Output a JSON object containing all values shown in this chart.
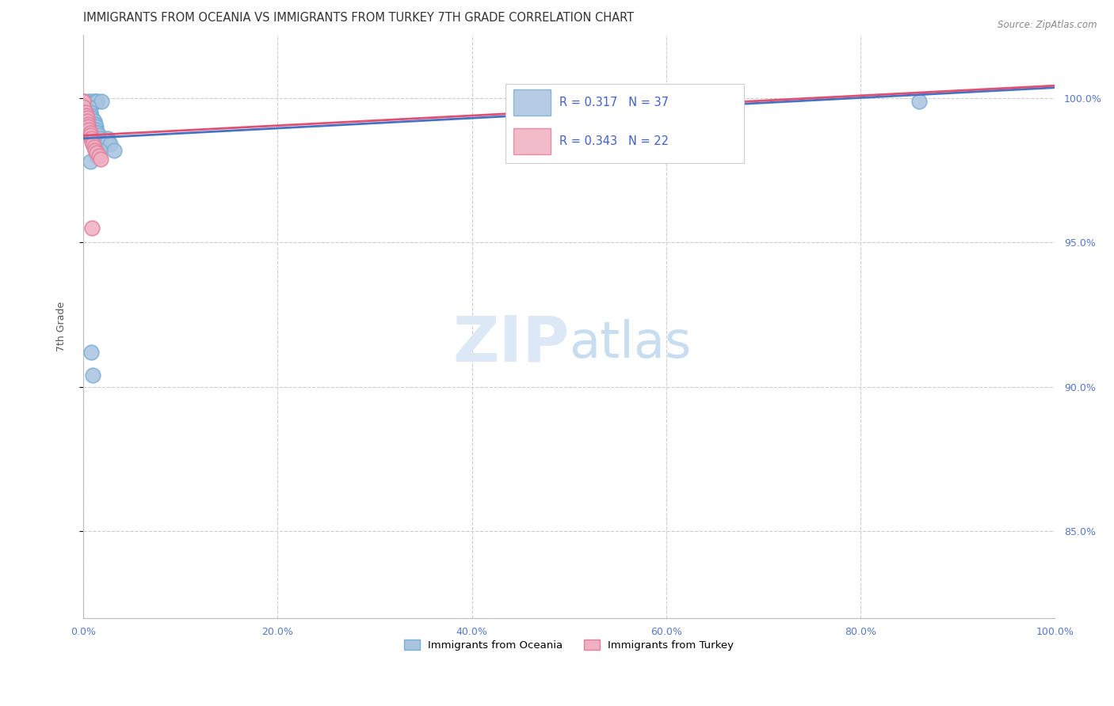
{
  "title": "IMMIGRANTS FROM OCEANIA VS IMMIGRANTS FROM TURKEY 7TH GRADE CORRELATION CHART",
  "source": "Source: ZipAtlas.com",
  "ylabel": "7th Grade",
  "xlim": [
    0.0,
    1.0
  ],
  "ylim": [
    0.82,
    1.022
  ],
  "legend_labels": [
    "Immigrants from Oceania",
    "Immigrants from Turkey"
  ],
  "oceania_color": "#aac4e0",
  "turkey_color": "#f0b0c0",
  "oceania_edge_color": "#7aafd4",
  "turkey_edge_color": "#e080a0",
  "oceania_line_color": "#4472c4",
  "turkey_line_color": "#e05070",
  "R_oceania": 0.317,
  "N_oceania": 37,
  "R_turkey": 0.343,
  "N_turkey": 22,
  "watermark_zip": "ZIP",
  "watermark_atlas": "atlas",
  "watermark_color": "#dce8f5",
  "oceania_points": [
    [
      0.0,
      0.999
    ],
    [
      0.0,
      0.999
    ],
    [
      0.005,
      0.999
    ],
    [
      0.008,
      0.999
    ],
    [
      0.011,
      0.999
    ],
    [
      0.012,
      0.999
    ],
    [
      0.014,
      0.999
    ],
    [
      0.014,
      0.999
    ],
    [
      0.019,
      0.999
    ],
    [
      0.005,
      0.997
    ],
    [
      0.006,
      0.997
    ],
    [
      0.007,
      0.995
    ],
    [
      0.008,
      0.994
    ],
    [
      0.008,
      0.993
    ],
    [
      0.01,
      0.992
    ],
    [
      0.011,
      0.992
    ],
    [
      0.012,
      0.991
    ],
    [
      0.013,
      0.99
    ],
    [
      0.013,
      0.989
    ],
    [
      0.014,
      0.988
    ],
    [
      0.015,
      0.988
    ],
    [
      0.016,
      0.987
    ],
    [
      0.018,
      0.986
    ],
    [
      0.02,
      0.985
    ],
    [
      0.022,
      0.984
    ],
    [
      0.025,
      0.986
    ],
    [
      0.025,
      0.985
    ],
    [
      0.028,
      0.984
    ],
    [
      0.032,
      0.982
    ],
    [
      0.017,
      0.982
    ],
    [
      0.014,
      0.98
    ],
    [
      0.007,
      0.978
    ],
    [
      0.63,
      0.999
    ],
    [
      0.65,
      0.999
    ],
    [
      0.86,
      0.999
    ],
    [
      0.008,
      0.912
    ],
    [
      0.01,
      0.904
    ]
  ],
  "turkey_points": [
    [
      0.0,
      0.999
    ],
    [
      0.0,
      0.999
    ],
    [
      0.0,
      0.997
    ],
    [
      0.002,
      0.995
    ],
    [
      0.003,
      0.994
    ],
    [
      0.004,
      0.993
    ],
    [
      0.004,
      0.992
    ],
    [
      0.005,
      0.991
    ],
    [
      0.005,
      0.99
    ],
    [
      0.006,
      0.989
    ],
    [
      0.007,
      0.988
    ],
    [
      0.007,
      0.987
    ],
    [
      0.008,
      0.986
    ],
    [
      0.009,
      0.985
    ],
    [
      0.01,
      0.984
    ],
    [
      0.011,
      0.983
    ],
    [
      0.012,
      0.982
    ],
    [
      0.014,
      0.981
    ],
    [
      0.016,
      0.98
    ],
    [
      0.018,
      0.979
    ],
    [
      0.009,
      0.955
    ],
    [
      0.63,
      0.999
    ]
  ]
}
